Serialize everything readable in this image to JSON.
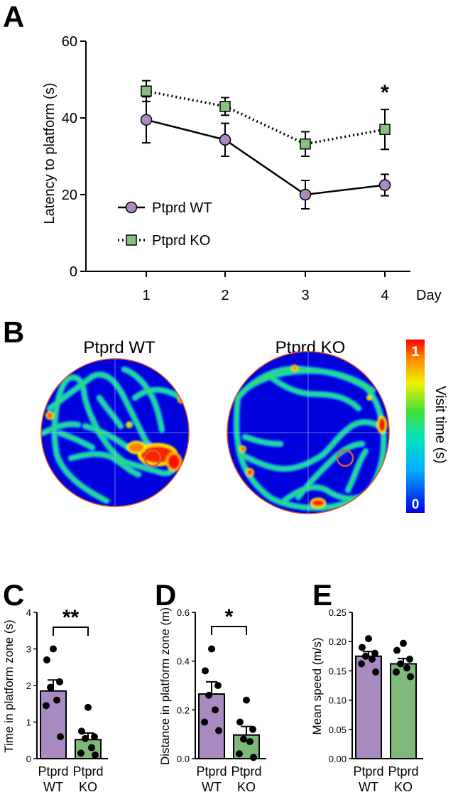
{
  "colors": {
    "wt": "#a98bc1",
    "ko": "#7fb979",
    "ko_marker": "#86c27e",
    "line": "#000000",
    "arena_bg": "#0000dd",
    "arena_border": "#e05020",
    "platform": "#d0603a"
  },
  "panels": {
    "a": "A",
    "b": "B",
    "c": "C",
    "d": "D",
    "e": "E"
  },
  "chart_data": [
    {
      "id": "A",
      "type": "line",
      "xlabel": "Day",
      "ylabel": "Latency to platform (s)",
      "x": [
        1,
        2,
        3,
        4
      ],
      "x_tick_labels": [
        "1",
        "2",
        "3",
        "4"
      ],
      "ylim": [
        0,
        60
      ],
      "y_ticks": [
        0,
        20,
        40,
        60
      ],
      "y_tick_labels": [
        "0",
        "20",
        "40",
        "60"
      ],
      "series": [
        {
          "name": "Ptprd WT",
          "style": "solid",
          "marker": "circle",
          "values": [
            39.5,
            34.3,
            20.0,
            22.5
          ],
          "errors": [
            6.0,
            4.3,
            3.7,
            2.8
          ]
        },
        {
          "name": "Ptprd KO",
          "style": "dotted",
          "marker": "square",
          "values": [
            47.0,
            43.0,
            33.2,
            37.0
          ],
          "errors": [
            2.7,
            2.3,
            3.2,
            5.2
          ]
        }
      ],
      "annotations": [
        {
          "x": 4,
          "text": "*"
        }
      ],
      "legend": "bottom-left"
    },
    {
      "id": "B",
      "type": "heatmap",
      "titles": [
        "Ptprd WT",
        "Ptprd KO"
      ],
      "colorbar_label": "Visit time (s)",
      "colorbar_min_label": "0",
      "colorbar_max_label": "1"
    },
    {
      "id": "C",
      "type": "bar",
      "ylabel": "Time in platform zone (s)",
      "categories": [
        "Ptprd WT",
        "Ptprd KO"
      ],
      "category_lines": [
        [
          "Ptprd",
          "WT"
        ],
        [
          "Ptprd",
          "KO"
        ]
      ],
      "values": [
        1.85,
        0.52
      ],
      "errors": [
        0.3,
        0.18
      ],
      "points": [
        [
          3.0,
          2.7,
          2.1,
          1.95,
          1.6,
          1.45,
          0.6
        ],
        [
          1.4,
          0.75,
          0.6,
          0.55,
          0.3,
          0.15,
          0.1
        ]
      ],
      "ylim": [
        0,
        4
      ],
      "y_ticks": [
        0,
        1,
        2,
        3,
        4
      ],
      "y_tick_labels": [
        "0",
        "1",
        "2",
        "3",
        "4"
      ],
      "significance": "**"
    },
    {
      "id": "D",
      "type": "bar",
      "ylabel": "Distance in platform zone (m)",
      "categories": [
        "Ptprd WT",
        "Ptprd KO"
      ],
      "category_lines": [
        [
          "Ptprd",
          "WT"
        ],
        [
          "Ptprd",
          "KO"
        ]
      ],
      "values": [
        0.265,
        0.097
      ],
      "errors": [
        0.05,
        0.035
      ],
      "points": [
        [
          0.45,
          0.36,
          0.3,
          0.26,
          0.2,
          0.15,
          0.115
        ],
        [
          0.24,
          0.15,
          0.12,
          0.08,
          0.07,
          0.02,
          0.005
        ]
      ],
      "ylim": [
        0,
        0.6
      ],
      "y_ticks": [
        0,
        0.2,
        0.4,
        0.6
      ],
      "y_tick_labels": [
        "0.0",
        "0.2",
        "0.4",
        "0.6"
      ],
      "significance": "*"
    },
    {
      "id": "E",
      "type": "bar",
      "ylabel": "Mean speed (m/s)",
      "categories": [
        "Ptprd WT",
        "Ptprd KO"
      ],
      "category_lines": [
        [
          "Ptprd",
          "WT"
        ],
        [
          "Ptprd",
          "KO"
        ]
      ],
      "values": [
        0.175,
        0.162
      ],
      "errors": [
        0.008,
        0.009
      ],
      "points": [
        [
          0.205,
          0.19,
          0.18,
          0.175,
          0.17,
          0.162,
          0.148
        ],
        [
          0.197,
          0.185,
          0.17,
          0.162,
          0.155,
          0.148,
          0.14
        ]
      ],
      "ylim": [
        0,
        0.25
      ],
      "y_ticks": [
        0,
        0.05,
        0.1,
        0.15,
        0.2,
        0.25
      ],
      "y_tick_labels": [
        "0.00",
        "0.05",
        "0.10",
        "0.15",
        "0.20",
        "0.25"
      ],
      "significance": ""
    }
  ]
}
